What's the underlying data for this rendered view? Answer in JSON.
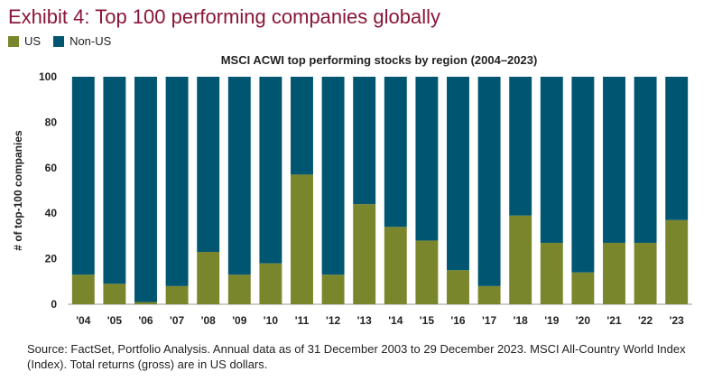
{
  "exhibit": {
    "title": "Exhibit 4: Top 100 performing companies globally"
  },
  "legend": [
    {
      "label": "US",
      "color": "#7a862b"
    },
    {
      "label": "Non-US",
      "color": "#005571"
    }
  ],
  "source_note": "Source: FactSet, Portfolio Analysis. Annual data as of 31 December 2003 to 29 December 2023. MSCI All-Country World Index (Index). Total returns (gross) are in US dollars.",
  "chart_data": {
    "type": "bar",
    "stacked": true,
    "title": "MSCI ACWI top performing stocks by region (2004–2023)",
    "xlabel": "",
    "ylabel": "# of top-100 companies",
    "ylim": [
      0,
      100
    ],
    "yticks": [
      0,
      20,
      40,
      60,
      80,
      100
    ],
    "grid": false,
    "legend_position": "top-left",
    "categories": [
      "'04",
      "'05",
      "'06",
      "'07",
      "'08",
      "'09",
      "'10",
      "'11",
      "'12",
      "'13",
      "'14",
      "'15",
      "'16",
      "'17",
      "'18",
      "'19",
      "'20",
      "'21",
      "'22",
      "'23"
    ],
    "series": [
      {
        "name": "US",
        "color": "#7a862b",
        "values": [
          13,
          9,
          1,
          8,
          23,
          13,
          18,
          57,
          13,
          44,
          34,
          28,
          15,
          8,
          39,
          27,
          14,
          27,
          27,
          37
        ]
      },
      {
        "name": "Non-US",
        "color": "#005571",
        "values": [
          87,
          91,
          99,
          92,
          77,
          87,
          82,
          43,
          87,
          56,
          66,
          72,
          85,
          92,
          61,
          73,
          86,
          73,
          73,
          63
        ]
      }
    ]
  }
}
